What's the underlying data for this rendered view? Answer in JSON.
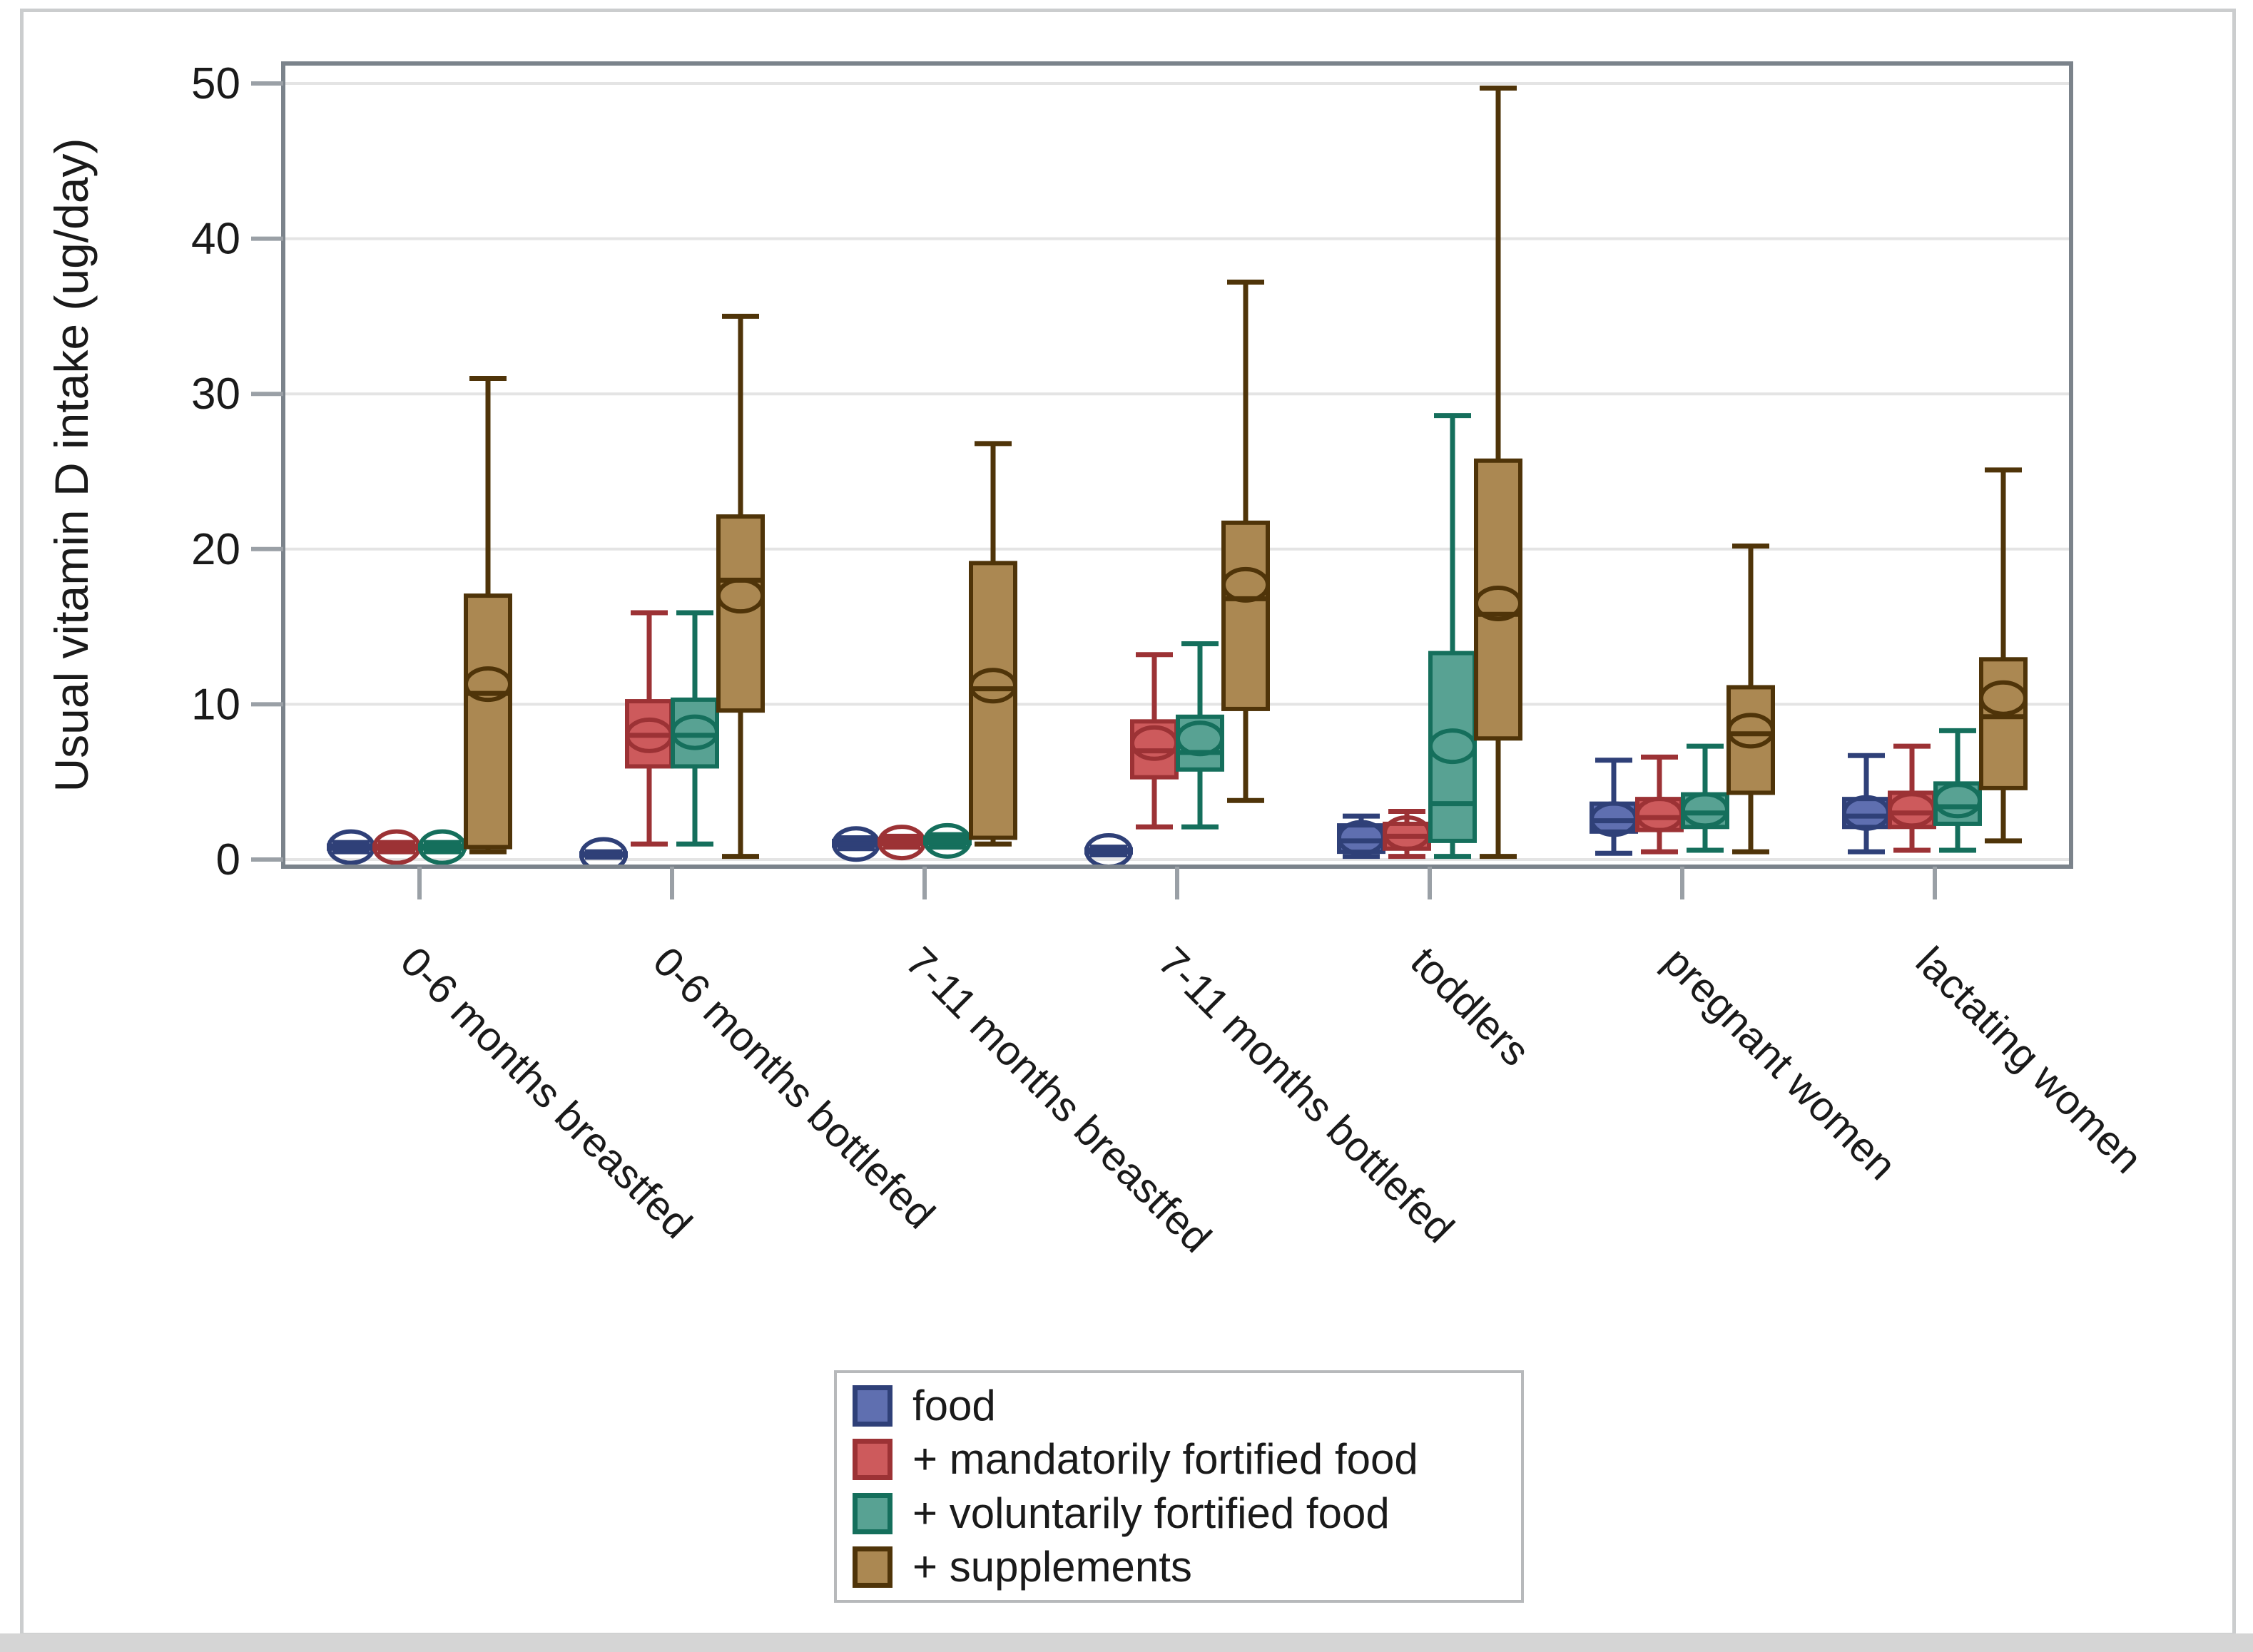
{
  "figure": {
    "background": "#ffffff",
    "outer_border_color": "#cbcdce",
    "bottom_strip_color": "#d5d5d5",
    "plot_border_color": "#7b838b",
    "gridline_color": "#e4e4e4",
    "tick_color": "#9aa0a6"
  },
  "chart_data": {
    "type": "box",
    "title": "",
    "ylabel": "Usual vitamin D intake (ug/day)",
    "xlabel": "",
    "ylim": [
      0,
      50
    ],
    "yticks": [
      0,
      10,
      20,
      30,
      40,
      50
    ],
    "grid": "horizontal",
    "legend_position": "bottom-center",
    "marker_notes": "circle = mean, line = median, box = IQR, whiskers = min/max",
    "categories": [
      "0-6 months breastfed",
      "0-6 months bottlefed",
      "7-11 months breastfed",
      "7-11 months bottlefed",
      "toddlers",
      "pregnant women",
      "lactating women"
    ],
    "series": [
      {
        "label": "food",
        "fill": "#5F6FB0",
        "stroke": "#2F4078",
        "boxes": [
          {
            "low": 0.5,
            "q1": 0.7,
            "median": 0.8,
            "mean": 0.8,
            "q3": 0.9,
            "high": 1.1
          },
          {
            "low": 0.15,
            "q1": 0.25,
            "median": 0.3,
            "mean": 0.3,
            "q3": 0.4,
            "high": 0.5
          },
          {
            "low": 0.7,
            "q1": 0.9,
            "median": 1.0,
            "mean": 1.0,
            "q3": 1.2,
            "high": 1.4
          },
          {
            "low": 0.3,
            "q1": 0.45,
            "median": 0.5,
            "mean": 0.55,
            "q3": 0.65,
            "high": 0.8
          },
          {
            "low": 0.2,
            "q1": 0.5,
            "median": 1.2,
            "mean": 1.4,
            "q3": 2.2,
            "high": 2.8
          },
          {
            "low": 0.4,
            "q1": 1.8,
            "median": 2.5,
            "mean": 2.6,
            "q3": 3.6,
            "high": 6.4
          },
          {
            "low": 0.5,
            "q1": 2.1,
            "median": 2.8,
            "mean": 3.0,
            "q3": 3.9,
            "high": 6.7
          }
        ]
      },
      {
        "label": "+ mandatorily fortified food",
        "fill": "#CD5A5C",
        "stroke": "#9C3235",
        "boxes": [
          {
            "low": 0.5,
            "q1": 0.7,
            "median": 0.8,
            "mean": 0.8,
            "q3": 0.9,
            "high": 1.1
          },
          {
            "low": 1.0,
            "q1": 6.0,
            "median": 8.0,
            "mean": 8.0,
            "q3": 10.2,
            "high": 15.9
          },
          {
            "low": 0.8,
            "q1": 1.0,
            "median": 1.1,
            "mean": 1.1,
            "q3": 1.3,
            "high": 1.5
          },
          {
            "low": 2.1,
            "q1": 5.3,
            "median": 7.0,
            "mean": 7.5,
            "q3": 8.9,
            "high": 13.2
          },
          {
            "low": 0.2,
            "q1": 0.7,
            "median": 1.5,
            "mean": 1.7,
            "q3": 2.3,
            "high": 3.1
          },
          {
            "low": 0.5,
            "q1": 1.9,
            "median": 2.7,
            "mean": 2.9,
            "q3": 3.9,
            "high": 6.6
          },
          {
            "low": 0.6,
            "q1": 2.1,
            "median": 3.0,
            "mean": 3.2,
            "q3": 4.3,
            "high": 7.3
          }
        ]
      },
      {
        "label": "+ voluntarily fortified food",
        "fill": "#58A293",
        "stroke": "#156F5C",
        "boxes": [
          {
            "low": 0.5,
            "q1": 0.7,
            "median": 0.8,
            "mean": 0.8,
            "q3": 0.9,
            "high": 1.1
          },
          {
            "low": 1.0,
            "q1": 6.0,
            "median": 8.0,
            "mean": 8.2,
            "q3": 10.3,
            "high": 15.9
          },
          {
            "low": 0.8,
            "q1": 1.05,
            "median": 1.2,
            "mean": 1.2,
            "q3": 1.4,
            "high": 1.6
          },
          {
            "low": 2.1,
            "q1": 5.8,
            "median": 6.9,
            "mean": 7.8,
            "q3": 9.2,
            "high": 13.9
          },
          {
            "low": 0.2,
            "q1": 1.2,
            "median": 3.6,
            "mean": 7.3,
            "q3": 13.3,
            "high": 28.6
          },
          {
            "low": 0.6,
            "q1": 2.1,
            "median": 3.0,
            "mean": 3.2,
            "q3": 4.2,
            "high": 7.3
          },
          {
            "low": 0.6,
            "q1": 2.3,
            "median": 3.4,
            "mean": 3.8,
            "q3": 4.9,
            "high": 8.3
          }
        ]
      },
      {
        "label": "+ supplements",
        "fill": "#AB8852",
        "stroke": "#4F3409",
        "boxes": [
          {
            "low": 0.5,
            "q1": 0.8,
            "median": 10.7,
            "mean": 11.3,
            "q3": 17.0,
            "high": 31.0
          },
          {
            "low": 0.2,
            "q1": 9.6,
            "median": 18.0,
            "mean": 17.0,
            "q3": 22.1,
            "high": 35.0
          },
          {
            "low": 1.0,
            "q1": 1.4,
            "median": 11.0,
            "mean": 11.2,
            "q3": 19.1,
            "high": 26.8
          },
          {
            "low": 3.8,
            "q1": 9.7,
            "median": 16.8,
            "mean": 17.7,
            "q3": 21.7,
            "high": 37.2
          },
          {
            "low": 0.2,
            "q1": 7.8,
            "median": 15.8,
            "mean": 16.5,
            "q3": 25.7,
            "high": 49.7
          },
          {
            "low": 0.5,
            "q1": 4.3,
            "median": 8.1,
            "mean": 8.3,
            "q3": 11.1,
            "high": 20.2
          },
          {
            "low": 1.2,
            "q1": 4.6,
            "median": 9.2,
            "mean": 10.4,
            "q3": 12.9,
            "high": 25.1
          }
        ]
      }
    ]
  }
}
